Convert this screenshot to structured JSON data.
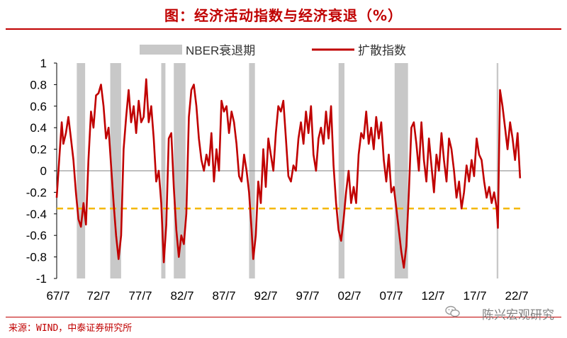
{
  "title": "图：经济活动指数与经济衰退（%）",
  "source": "来源：WIND，中泰证券研究所",
  "watermark": "陈兴宏观研究",
  "colors": {
    "line": "#c00000",
    "recession": "#c8c8c8",
    "threshold": "#f5b800",
    "title": "#c00000"
  },
  "chart_data": {
    "type": "line",
    "legend": [
      "NBER衰退期",
      "扩散指数"
    ],
    "legend_position": "top",
    "xlabels": [
      "67/7",
      "72/7",
      "77/7",
      "82/7",
      "87/7",
      "92/7",
      "97/7",
      "02/7",
      "07/7",
      "12/7",
      "17/7",
      "22/7"
    ],
    "xlim": [
      1967.5,
      2023.0
    ],
    "ylim": [
      -1,
      1
    ],
    "yticks": [
      "1",
      "0.8",
      "0.6",
      "0.4",
      "0.2",
      "0",
      "-0.2",
      "-0.4",
      "-0.6",
      "-0.8",
      "-1"
    ],
    "threshold": -0.35,
    "recessions": [
      [
        1969.9,
        1970.9
      ],
      [
        1973.9,
        1975.2
      ],
      [
        1980.0,
        1980.5
      ],
      [
        1981.5,
        1982.9
      ],
      [
        1990.5,
        1991.2
      ],
      [
        2001.2,
        2001.9
      ],
      [
        2007.9,
        2009.5
      ],
      [
        2020.1,
        2020.3
      ]
    ],
    "series": [
      {
        "name": "扩散指数",
        "points": [
          [
            1967.5,
            -0.25
          ],
          [
            1967.8,
            0.1
          ],
          [
            1968.1,
            0.45
          ],
          [
            1968.3,
            0.25
          ],
          [
            1968.6,
            0.35
          ],
          [
            1968.9,
            0.5
          ],
          [
            1969.2,
            0.3
          ],
          [
            1969.5,
            0.1
          ],
          [
            1969.8,
            -0.2
          ],
          [
            1970.1,
            -0.45
          ],
          [
            1970.4,
            -0.52
          ],
          [
            1970.7,
            -0.3
          ],
          [
            1971.0,
            -0.5
          ],
          [
            1971.3,
            0.1
          ],
          [
            1971.6,
            0.55
          ],
          [
            1971.9,
            0.4
          ],
          [
            1972.2,
            0.7
          ],
          [
            1972.5,
            0.72
          ],
          [
            1972.8,
            0.8
          ],
          [
            1973.1,
            0.6
          ],
          [
            1973.4,
            0.3
          ],
          [
            1973.7,
            0.4
          ],
          [
            1974.0,
            0.05
          ],
          [
            1974.3,
            -0.3
          ],
          [
            1974.6,
            -0.6
          ],
          [
            1974.9,
            -0.82
          ],
          [
            1975.2,
            -0.6
          ],
          [
            1975.5,
            0.2
          ],
          [
            1975.8,
            0.5
          ],
          [
            1976.1,
            0.75
          ],
          [
            1976.4,
            0.45
          ],
          [
            1976.7,
            0.6
          ],
          [
            1977.0,
            0.35
          ],
          [
            1977.3,
            0.65
          ],
          [
            1977.6,
            0.45
          ],
          [
            1977.9,
            0.5
          ],
          [
            1978.2,
            0.85
          ],
          [
            1978.5,
            0.45
          ],
          [
            1978.8,
            0.6
          ],
          [
            1979.1,
            0.3
          ],
          [
            1979.4,
            -0.1
          ],
          [
            1979.7,
            0.0
          ],
          [
            1980.0,
            -0.3
          ],
          [
            1980.3,
            -0.85
          ],
          [
            1980.6,
            -0.5
          ],
          [
            1980.9,
            0.3
          ],
          [
            1981.2,
            0.35
          ],
          [
            1981.5,
            -0.15
          ],
          [
            1981.8,
            -0.55
          ],
          [
            1982.1,
            -0.8
          ],
          [
            1982.4,
            -0.6
          ],
          [
            1982.7,
            -0.68
          ],
          [
            1983.0,
            -0.4
          ],
          [
            1983.3,
            0.5
          ],
          [
            1983.6,
            0.75
          ],
          [
            1983.9,
            0.8
          ],
          [
            1984.2,
            0.6
          ],
          [
            1984.5,
            0.3
          ],
          [
            1984.8,
            0.1
          ],
          [
            1985.1,
            0.0
          ],
          [
            1985.4,
            0.15
          ],
          [
            1985.7,
            0.05
          ],
          [
            1986.0,
            0.35
          ],
          [
            1986.3,
            -0.1
          ],
          [
            1986.6,
            0.2
          ],
          [
            1986.9,
            0.0
          ],
          [
            1987.2,
            0.65
          ],
          [
            1987.5,
            0.55
          ],
          [
            1987.8,
            0.6
          ],
          [
            1988.1,
            0.35
          ],
          [
            1988.4,
            0.55
          ],
          [
            1988.7,
            0.45
          ],
          [
            1989.0,
            0.25
          ],
          [
            1989.3,
            -0.05
          ],
          [
            1989.6,
            -0.1
          ],
          [
            1989.9,
            0.15
          ],
          [
            1990.2,
            0.0
          ],
          [
            1990.5,
            -0.2
          ],
          [
            1990.8,
            -0.55
          ],
          [
            1991.0,
            -0.82
          ],
          [
            1991.3,
            -0.6
          ],
          [
            1991.6,
            -0.1
          ],
          [
            1991.9,
            -0.3
          ],
          [
            1992.2,
            0.2
          ],
          [
            1992.5,
            -0.15
          ],
          [
            1992.8,
            0.3
          ],
          [
            1993.1,
            0.15
          ],
          [
            1993.4,
            0.0
          ],
          [
            1993.7,
            0.35
          ],
          [
            1994.0,
            0.6
          ],
          [
            1994.3,
            0.55
          ],
          [
            1994.6,
            0.65
          ],
          [
            1994.9,
            0.3
          ],
          [
            1995.2,
            -0.05
          ],
          [
            1995.5,
            -0.1
          ],
          [
            1995.8,
            0.05
          ],
          [
            1996.1,
            0.0
          ],
          [
            1996.4,
            0.3
          ],
          [
            1996.7,
            0.45
          ],
          [
            1997.0,
            0.25
          ],
          [
            1997.3,
            0.55
          ],
          [
            1997.6,
            0.35
          ],
          [
            1997.9,
            0.6
          ],
          [
            1998.2,
            0.15
          ],
          [
            1998.5,
            0.0
          ],
          [
            1998.8,
            0.3
          ],
          [
            1999.1,
            0.4
          ],
          [
            1999.4,
            0.25
          ],
          [
            1999.7,
            0.55
          ],
          [
            2000.0,
            0.3
          ],
          [
            2000.3,
            0.6
          ],
          [
            2000.6,
            0.05
          ],
          [
            2000.9,
            -0.3
          ],
          [
            2001.2,
            -0.55
          ],
          [
            2001.5,
            -0.65
          ],
          [
            2001.8,
            -0.45
          ],
          [
            2002.1,
            -0.2
          ],
          [
            2002.4,
            0.0
          ],
          [
            2002.7,
            -0.3
          ],
          [
            2003.0,
            -0.15
          ],
          [
            2003.3,
            -0.3
          ],
          [
            2003.6,
            0.15
          ],
          [
            2003.9,
            0.35
          ],
          [
            2004.2,
            0.3
          ],
          [
            2004.5,
            0.55
          ],
          [
            2004.8,
            0.25
          ],
          [
            2005.1,
            0.4
          ],
          [
            2005.4,
            0.2
          ],
          [
            2005.7,
            0.5
          ],
          [
            2006.0,
            0.3
          ],
          [
            2006.3,
            0.45
          ],
          [
            2006.6,
            0.1
          ],
          [
            2006.9,
            -0.1
          ],
          [
            2007.2,
            0.15
          ],
          [
            2007.5,
            -0.2
          ],
          [
            2007.8,
            -0.15
          ],
          [
            2008.1,
            -0.35
          ],
          [
            2008.4,
            -0.55
          ],
          [
            2008.7,
            -0.75
          ],
          [
            2009.0,
            -0.9
          ],
          [
            2009.3,
            -0.7
          ],
          [
            2009.6,
            -0.2
          ],
          [
            2009.9,
            0.4
          ],
          [
            2010.2,
            0.45
          ],
          [
            2010.5,
            0.25
          ],
          [
            2010.8,
            0.0
          ],
          [
            2011.1,
            0.45
          ],
          [
            2011.4,
            0.1
          ],
          [
            2011.7,
            -0.1
          ],
          [
            2012.0,
            0.3
          ],
          [
            2012.3,
            0.05
          ],
          [
            2012.6,
            -0.2
          ],
          [
            2012.9,
            0.15
          ],
          [
            2013.2,
            0.0
          ],
          [
            2013.5,
            0.35
          ],
          [
            2013.8,
            0.1
          ],
          [
            2014.1,
            -0.1
          ],
          [
            2014.4,
            0.3
          ],
          [
            2014.7,
            0.2
          ],
          [
            2015.0,
            0.0
          ],
          [
            2015.3,
            -0.25
          ],
          [
            2015.6,
            -0.1
          ],
          [
            2015.9,
            -0.35
          ],
          [
            2016.2,
            -0.2
          ],
          [
            2016.5,
            0.05
          ],
          [
            2016.8,
            -0.1
          ],
          [
            2017.1,
            0.1
          ],
          [
            2017.4,
            -0.05
          ],
          [
            2017.7,
            0.3
          ],
          [
            2018.0,
            0.15
          ],
          [
            2018.3,
            0.1
          ],
          [
            2018.6,
            -0.1
          ],
          [
            2018.9,
            -0.25
          ],
          [
            2019.2,
            -0.15
          ],
          [
            2019.5,
            -0.3
          ],
          [
            2019.8,
            -0.2
          ],
          [
            2020.1,
            -0.35
          ],
          [
            2020.25,
            -0.53
          ],
          [
            2020.5,
            0.75
          ],
          [
            2020.8,
            0.6
          ],
          [
            2021.1,
            0.4
          ],
          [
            2021.4,
            0.2
          ],
          [
            2021.7,
            0.45
          ],
          [
            2022.0,
            0.3
          ],
          [
            2022.3,
            0.1
          ],
          [
            2022.6,
            0.35
          ],
          [
            2022.9,
            -0.07
          ]
        ]
      }
    ]
  }
}
